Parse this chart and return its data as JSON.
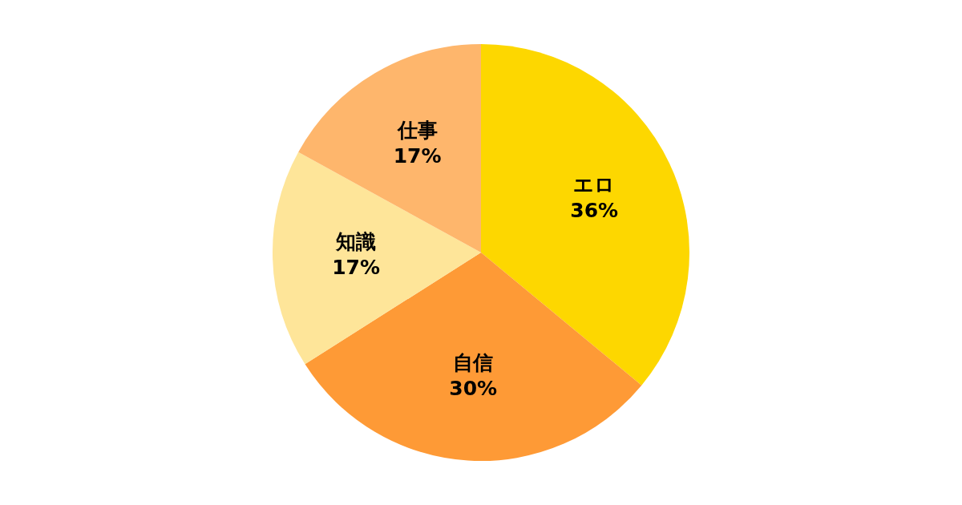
{
  "chart_data": {
    "type": "pie",
    "categories": [
      "エロ",
      "自信",
      "知識",
      "仕事"
    ],
    "values": [
      36,
      30,
      17,
      17
    ],
    "colors": [
      "#fdd700",
      "#fe9a36",
      "#fee599",
      "#feb66c"
    ],
    "value_labels": [
      "36%",
      "30%",
      "17%",
      "17%"
    ],
    "legend": false
  }
}
